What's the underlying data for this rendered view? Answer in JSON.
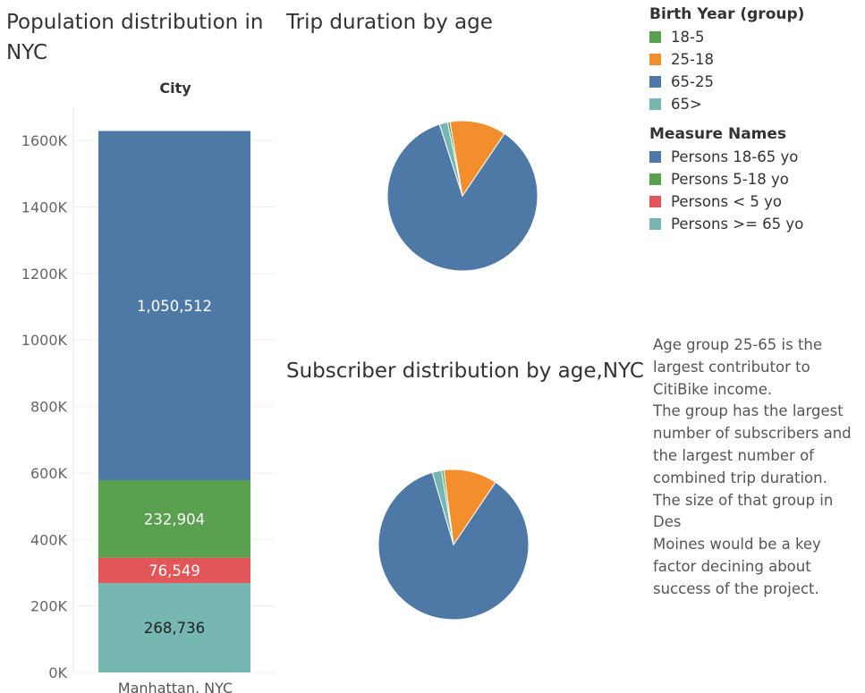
{
  "colors": {
    "blue": "#4e79a7",
    "green": "#59a14f",
    "red": "#e15759",
    "teal": "#76b7b2",
    "orange": "#f28e2b"
  },
  "legends": {
    "birth_year": {
      "title": "Birth Year (group)",
      "items": [
        {
          "label": "18-5",
          "color": "#59a14f"
        },
        {
          "label": "25-18",
          "color": "#f28e2b"
        },
        {
          "label": "65-25",
          "color": "#4e79a7"
        },
        {
          "label": "65>",
          "color": "#76b7b2"
        }
      ]
    },
    "measure_names": {
      "title": "Measure Names",
      "items": [
        {
          "label": "Persons 18-65 yo",
          "color": "#4e79a7"
        },
        {
          "label": "Persons 5-18 yo",
          "color": "#59a14f"
        },
        {
          "label": "Persons < 5 yo",
          "color": "#e15759"
        },
        {
          "label": "Persons >= 65 yo",
          "color": "#76b7b2"
        }
      ]
    }
  },
  "note": "Age group 25-65 is the\nlargest contributor to\nCitiBike income.\nThe group has the largest\nnumber of subscribers and\nthe largest number of\ncombined trip duration.\nThe size of that group in Des\nMoines would be a key\nfactor decining about\nsuccess of the project.",
  "chart_data": [
    {
      "type": "bar",
      "title": "Population distribution in NYC",
      "header": "City",
      "categories": [
        "Manhattan, NYC"
      ],
      "ylim": [
        0,
        1700000
      ],
      "ticks": [
        0,
        200000,
        400000,
        600000,
        800000,
        1000000,
        1200000,
        1400000,
        1600000
      ],
      "tick_labels": [
        "0K",
        "200K",
        "400K",
        "600K",
        "800K",
        "1000K",
        "1200K",
        "1400K",
        "1600K"
      ],
      "stacked": true,
      "series": [
        {
          "name": "Persons >= 65 yo",
          "color": "#76b7b2",
          "values": [
            268736
          ],
          "label": "268,736",
          "label_color": "#222222"
        },
        {
          "name": "Persons < 5 yo",
          "color": "#e15759",
          "values": [
            76549
          ],
          "label": "76,549",
          "label_color": "#ffffff"
        },
        {
          "name": "Persons 5-18 yo",
          "color": "#59a14f",
          "values": [
            232904
          ],
          "label": "232,904",
          "label_color": "#ffffff"
        },
        {
          "name": "Persons 18-65 yo",
          "color": "#4e79a7",
          "values": [
            1050512
          ],
          "label": "1,050,512",
          "label_color": "#ffffff"
        }
      ]
    },
    {
      "type": "pie",
      "title": "Trip duration by age",
      "slices": [
        {
          "name": "65-25",
          "color": "#4e79a7",
          "value": 85.6
        },
        {
          "name": "65>",
          "color": "#76b7b2",
          "value": 1.8
        },
        {
          "name": "18-5",
          "color": "#59a14f",
          "value": 0.5
        },
        {
          "name": "25-18",
          "color": "#f28e2b",
          "value": 12.1
        }
      ]
    },
    {
      "type": "pie",
      "title": "Subscriber distribution by age,NYC",
      "slices": [
        {
          "name": "65-25",
          "color": "#4e79a7",
          "value": 86.0
        },
        {
          "name": "65>",
          "color": "#76b7b2",
          "value": 2.0
        },
        {
          "name": "18-5",
          "color": "#59a14f",
          "value": 0.5
        },
        {
          "name": "25-18",
          "color": "#f28e2b",
          "value": 11.5
        }
      ]
    }
  ]
}
